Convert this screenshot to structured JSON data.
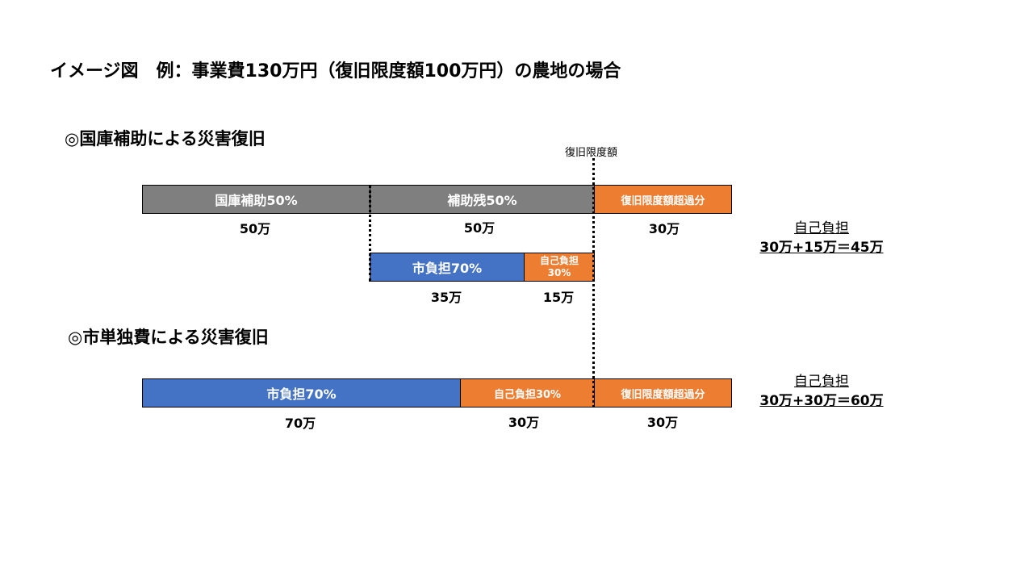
{
  "title": "イメージ図　例：事業費130万円（復旧限度額100万円）の農地の場合",
  "limit_label": "復旧限度額",
  "section1": {
    "heading": "◎国庫補助による災害復旧",
    "row1": {
      "national": {
        "label": "国庫補助50%",
        "amount": "50万"
      },
      "remaining": {
        "label": "補助残50%",
        "amount": "50万"
      },
      "excess": {
        "label": "復旧限度額超過分",
        "amount": "30万"
      }
    },
    "row2": {
      "city": {
        "label": "市負担70%",
        "amount": "35万"
      },
      "self": {
        "label_line1": "自己負担",
        "label_line2": "30%",
        "amount": "15万"
      }
    },
    "summary": {
      "label": "自己負担",
      "formula": "30万+15万＝45万"
    }
  },
  "section2": {
    "heading": "◎市単独費による災害復旧",
    "row": {
      "city": {
        "label": "市負担70%",
        "amount": "70万"
      },
      "self": {
        "label": "自己負担30%",
        "amount": "30万"
      },
      "excess": {
        "label": "復旧限度額超過分",
        "amount": "30万"
      }
    },
    "summary": {
      "label": "自己負担",
      "formula": "30万+30万＝60万"
    }
  },
  "colors": {
    "gray": "#7f7f7f",
    "blue": "#4472c4",
    "orange": "#ed7d31"
  }
}
